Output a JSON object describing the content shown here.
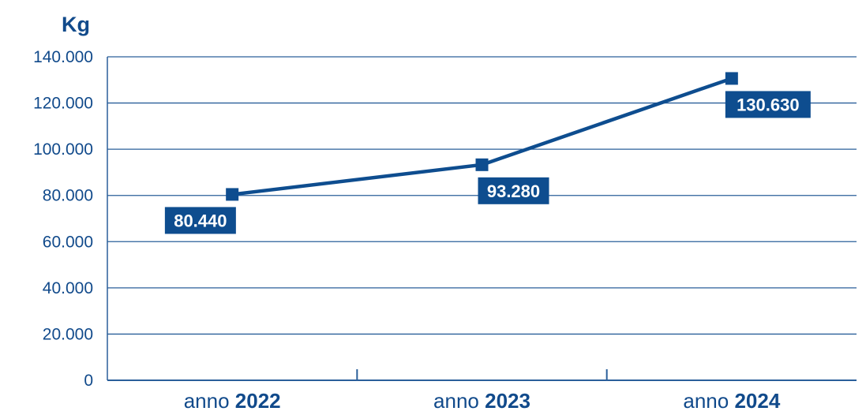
{
  "chart_data": {
    "type": "line",
    "ylabel": "Kg",
    "categories": [
      {
        "prefix": "anno",
        "year": "2022"
      },
      {
        "prefix": "anno",
        "year": "2023"
      },
      {
        "prefix": "anno",
        "year": "2024"
      }
    ],
    "series": [
      {
        "values": [
          80440,
          93280,
          130630
        ],
        "data_labels": [
          "80.440",
          "93.280",
          "130.630"
        ]
      }
    ],
    "ylim": [
      0,
      140000
    ],
    "yticks": [
      0,
      20000,
      40000,
      60000,
      80000,
      100000,
      120000,
      140000
    ],
    "ytick_labels": [
      "0",
      "20.000",
      "40.000",
      "60.000",
      "80.000",
      "100.000",
      "120.000",
      "140.000"
    ],
    "grid": true,
    "legend": "none",
    "colors": {
      "line": "#0e4d8f",
      "grid": "#2a5f9a",
      "text": "#114a8b",
      "label_bg": "#0e4d8f",
      "label_text": "#ffffff"
    }
  }
}
